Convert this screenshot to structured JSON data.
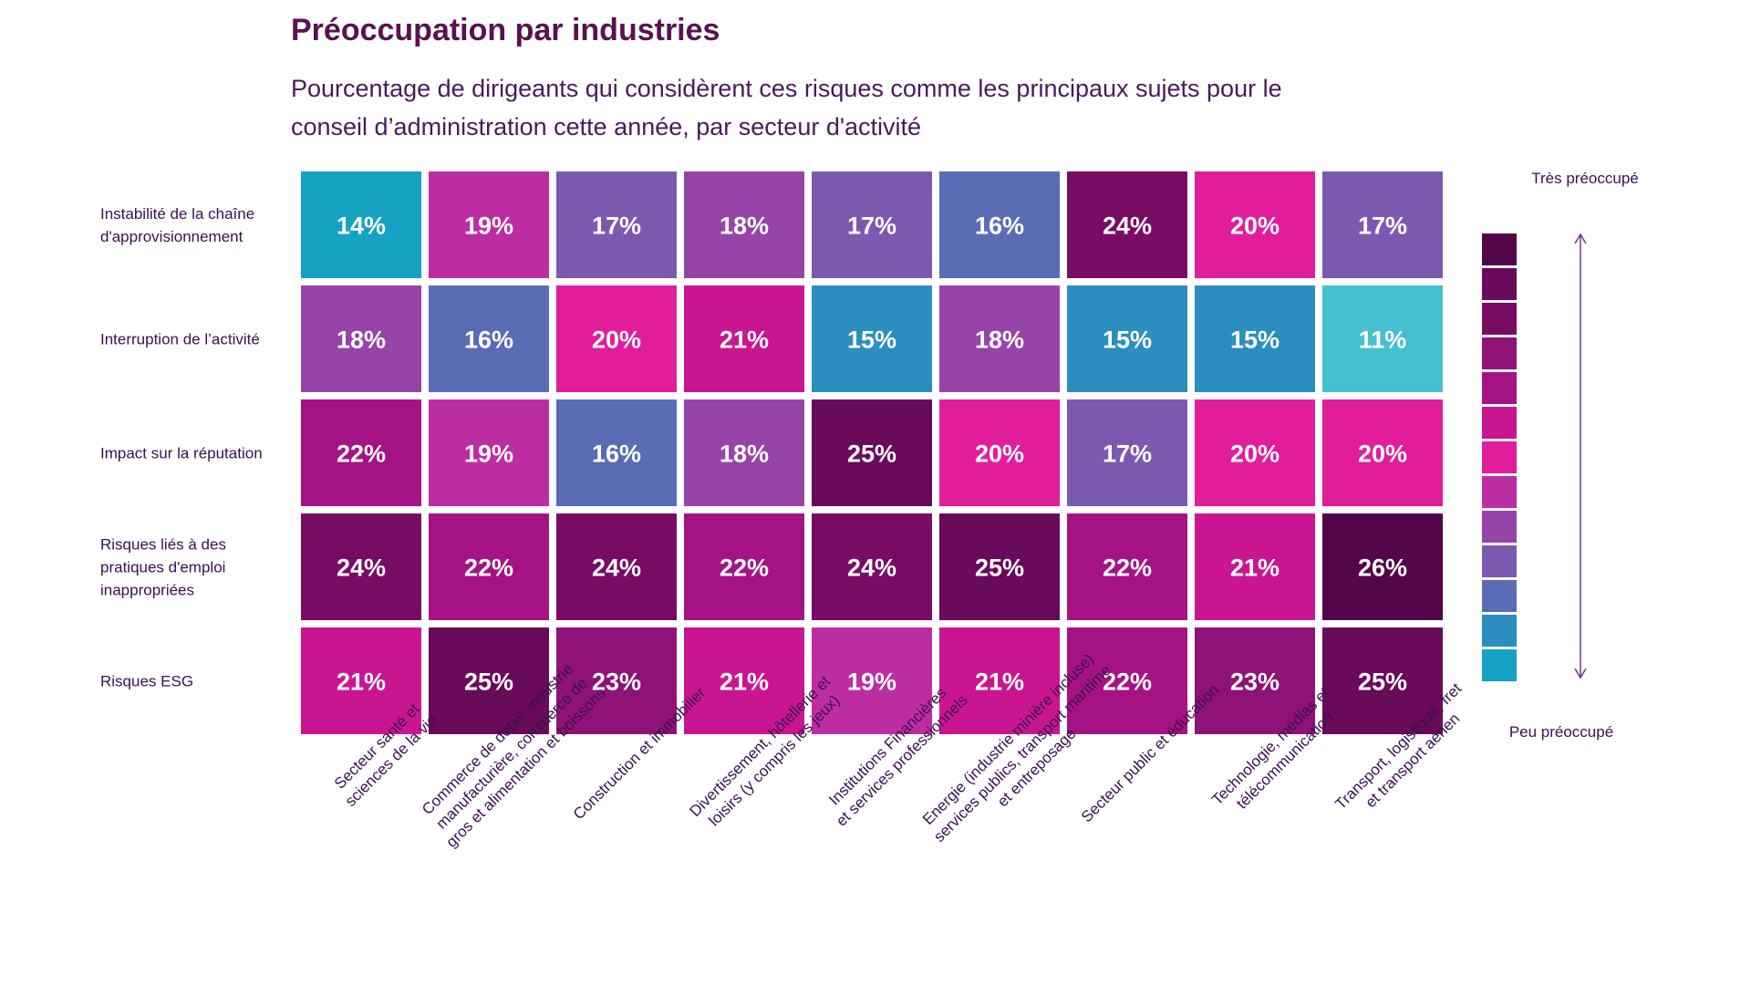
{
  "title": "Préoccupation par industries",
  "subtitle": "Pourcentage de dirigeants qui considèrent ces risques comme les principaux sujets pour le conseil d’administration cette année, par secteur d'activité",
  "chart_data": {
    "type": "heatmap",
    "rows": [
      [
        "Instabilité de la chaîne",
        "d'approvisionnement"
      ],
      [
        "Interruption de l’activité"
      ],
      [
        "Impact sur la réputation"
      ],
      [
        "Risques liés à des",
        "pratiques d'emploi",
        "inappropriées"
      ],
      [
        "Risques ESG"
      ]
    ],
    "columns": [
      [
        "Secteur santé et",
        "sciences de la vie"
      ],
      [
        "Commerce de détail, industrie",
        "manufacturière, commerce de",
        "gros et alimentation et boissons"
      ],
      [
        "Construction et immobilier"
      ],
      [
        "Divertissement, hôtellerie et",
        "loisirs (y compris les jeux)"
      ],
      [
        "Institutions Financières",
        "et services professionnels"
      ],
      [
        "Energie (industrie minière incluse)",
        "services publics, transport maritime",
        "et entreposage"
      ],
      [
        "Secteur public et éducation"
      ],
      [
        "Technologie, médias et",
        "télécommunication"
      ],
      [
        "Transport, logistique, fret",
        "et transport aérien"
      ]
    ],
    "values": [
      [
        14,
        19,
        17,
        18,
        17,
        16,
        24,
        20,
        17
      ],
      [
        18,
        16,
        20,
        21,
        15,
        18,
        15,
        15,
        11
      ],
      [
        22,
        19,
        16,
        18,
        25,
        20,
        17,
        20,
        20
      ],
      [
        24,
        22,
        24,
        22,
        24,
        25,
        22,
        21,
        26
      ],
      [
        21,
        25,
        23,
        21,
        19,
        21,
        22,
        23,
        25
      ]
    ],
    "value_suffix": "%",
    "color_scale": {
      "11": "#46bfcf",
      "14": "#16a2c3",
      "15": "#2c8ebf",
      "16": "#5a6cb6",
      "17": "#7c59b1",
      "18": "#9744a9",
      "19": "#bd2da2",
      "20": "#e11d9c",
      "21": "#c91690",
      "22": "#a51283",
      "23": "#8f1276",
      "24": "#780c65",
      "25": "#690a5a",
      "26": "#52054a"
    },
    "legend": {
      "top_label": "Très préoccupé",
      "bottom_label": "Peu préoccupé",
      "swatches": [
        "#52054a",
        "#690a5a",
        "#780c65",
        "#8f1276",
        "#a51283",
        "#c91690",
        "#e11d9c",
        "#bd2da2",
        "#9744a9",
        "#7c59b1",
        "#5a6cb6",
        "#2c8ebf",
        "#16a2c3"
      ]
    }
  }
}
